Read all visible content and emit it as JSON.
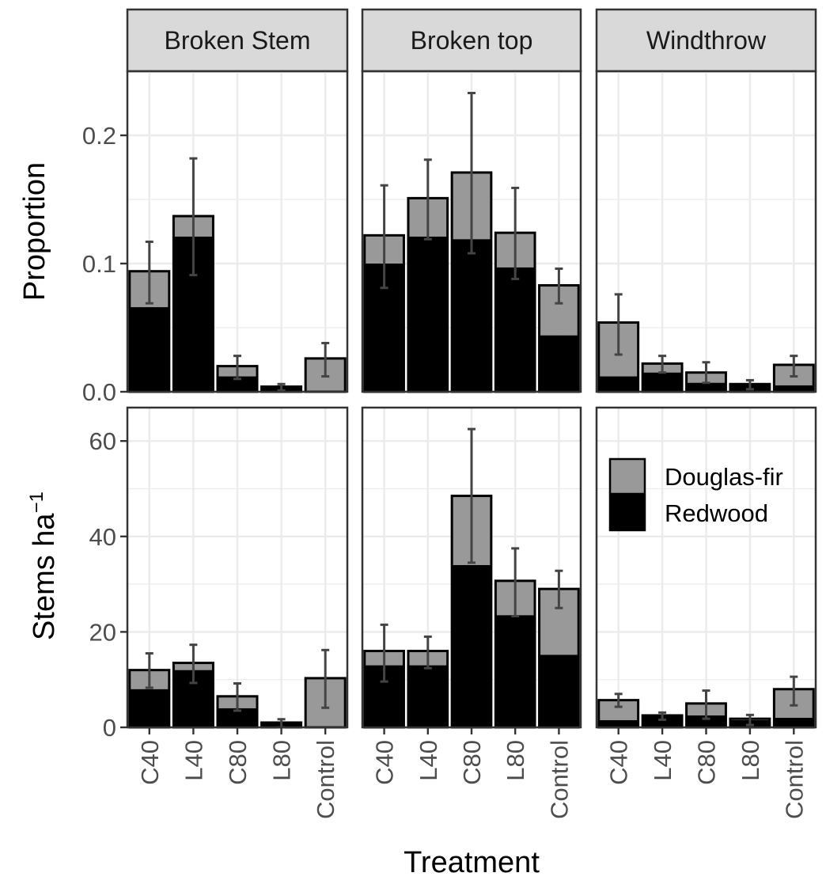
{
  "chart_data": {
    "type": "bar",
    "stacked": true,
    "layout": "faceted grid, 2 rows x 3 columns",
    "facets": [
      "Broken Stem",
      "Broken top",
      "Windthrow"
    ],
    "categories": [
      "C40",
      "L40",
      "C80",
      "L80",
      "Control"
    ],
    "xlabel": "Treatment",
    "series_names": [
      "Douglas-fir",
      "Redwood"
    ],
    "colors": {
      "Douglas-fir": "#999999",
      "Redwood": "#000000",
      "errorbar": "#444444",
      "grid": "#ebebeb",
      "strip_bg": "#d9d9d9"
    },
    "legend": {
      "position": "inside bottom-right panel, top",
      "entries": [
        "Douglas-fir",
        "Redwood"
      ]
    },
    "rows": [
      {
        "ylabel": "Proportion",
        "ylabel_sup": "",
        "ylim": [
          0,
          0.25
        ],
        "yticks": [
          0.0,
          0.1,
          0.2
        ],
        "ytick_labels": [
          "0.0",
          "0.1",
          "0.2"
        ],
        "panels": [
          {
            "facet": "Broken Stem",
            "redwood": [
              0.066,
              0.121,
              0.012,
              0.004,
              0.0
            ],
            "total": [
              0.094,
              0.137,
              0.02,
              0.004,
              0.026
            ],
            "err_low": [
              0.069,
              0.091,
              0.01,
              0.001,
              0.012
            ],
            "err_high": [
              0.117,
              0.182,
              0.028,
              0.006,
              0.038
            ]
          },
          {
            "facet": "Broken top",
            "redwood": [
              0.1,
              0.121,
              0.119,
              0.097,
              0.044
            ],
            "total": [
              0.122,
              0.151,
              0.171,
              0.124,
              0.083
            ],
            "err_low": [
              0.081,
              0.119,
              0.108,
              0.088,
              0.069
            ],
            "err_high": [
              0.161,
              0.181,
              0.233,
              0.159,
              0.096
            ]
          },
          {
            "facet": "Windthrow",
            "redwood": [
              0.012,
              0.015,
              0.007,
              0.006,
              0.005
            ],
            "total": [
              0.054,
              0.022,
              0.015,
              0.006,
              0.021
            ],
            "err_low": [
              0.029,
              0.015,
              0.007,
              0.002,
              0.012
            ],
            "err_high": [
              0.076,
              0.028,
              0.023,
              0.009,
              0.028
            ]
          }
        ]
      },
      {
        "ylabel": "Stems ha",
        "ylabel_sup": "−1",
        "ylim": [
          0,
          67
        ],
        "yticks": [
          0,
          20,
          40,
          60
        ],
        "ytick_labels": [
          "0",
          "20",
          "40",
          "60"
        ],
        "panels": [
          {
            "facet": "Broken Stem",
            "redwood": [
              8.0,
              12.0,
              4.0,
              1.0,
              0.0
            ],
            "total": [
              12.0,
              13.5,
              6.5,
              1.0,
              10.3
            ],
            "err_low": [
              8.3,
              9.3,
              3.5,
              0.0,
              4.1
            ],
            "err_high": [
              15.5,
              17.3,
              9.2,
              1.7,
              16.2
            ]
          },
          {
            "facet": "Broken top",
            "redwood": [
              13.0,
              13.0,
              34.0,
              23.5,
              15.2
            ],
            "total": [
              16.0,
              16.0,
              48.5,
              30.7,
              29.0
            ],
            "err_low": [
              9.6,
              12.4,
              34.5,
              23.3,
              25.0
            ],
            "err_high": [
              21.5,
              19.0,
              62.5,
              37.5,
              32.8
            ]
          },
          {
            "facet": "Windthrow",
            "redwood": [
              1.5,
              2.5,
              2.5,
              1.5,
              2.0
            ],
            "total": [
              5.7,
              2.5,
              5.0,
              1.8,
              8.0
            ],
            "err_low": [
              4.3,
              1.6,
              1.8,
              0.5,
              4.6
            ],
            "err_high": [
              7.0,
              3.1,
              7.7,
              2.6,
              10.6
            ]
          }
        ]
      }
    ]
  }
}
